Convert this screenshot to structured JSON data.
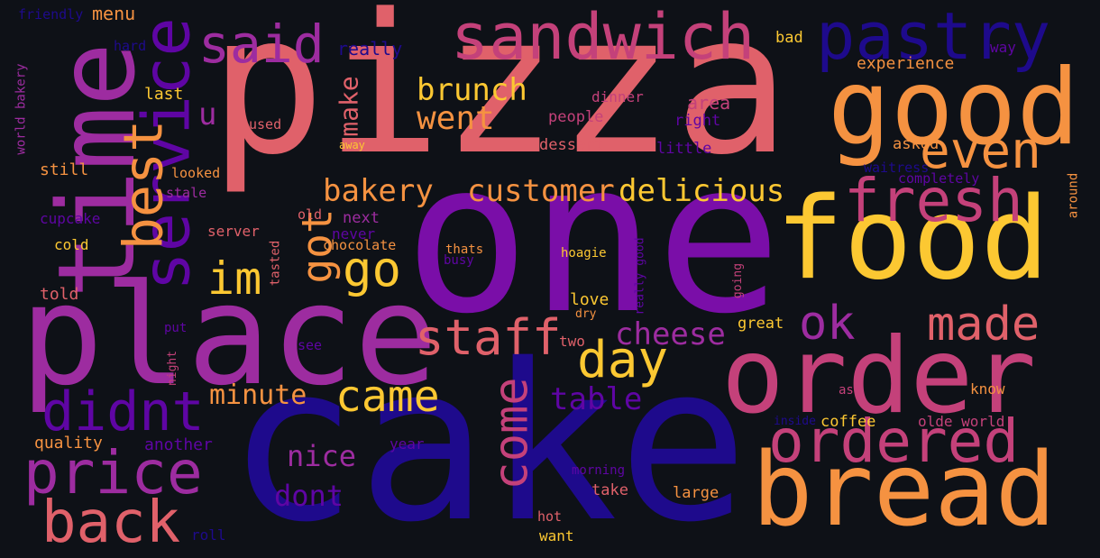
{
  "colors": {
    "background": "#0e1117",
    "coral": "#e0616a",
    "orange": "#f59241",
    "yellow": "#fcc832",
    "pink": "#c4417a",
    "magenta": "#9d2ca0",
    "purple": "#7a0ea8",
    "violet": "#5f05a4",
    "navy": "#1e0a8c"
  },
  "words": [
    {
      "text": "pizza",
      "color": "coral"
    },
    {
      "text": "one",
      "color": "purple"
    },
    {
      "text": "cake",
      "color": "navy"
    },
    {
      "text": "place",
      "color": "magenta"
    },
    {
      "text": "food",
      "color": "yellow"
    },
    {
      "text": "good",
      "color": "orange"
    },
    {
      "text": "order",
      "color": "pink"
    },
    {
      "text": "bread",
      "color": "orange"
    },
    {
      "text": "time",
      "color": "magenta"
    },
    {
      "text": "sandwich",
      "color": "pink"
    },
    {
      "text": "pastry",
      "color": "navy"
    },
    {
      "text": "service",
      "color": "violet"
    },
    {
      "text": "said",
      "color": "magenta"
    },
    {
      "text": "best",
      "color": "orange"
    },
    {
      "text": "fresh",
      "color": "pink"
    },
    {
      "text": "even",
      "color": "orange"
    },
    {
      "text": "ordered",
      "color": "pink"
    },
    {
      "text": "price",
      "color": "magenta"
    },
    {
      "text": "back",
      "color": "coral"
    },
    {
      "text": "didnt",
      "color": "violet"
    },
    {
      "text": "made",
      "color": "coral"
    },
    {
      "text": "day",
      "color": "yellow"
    },
    {
      "text": "staff",
      "color": "coral"
    },
    {
      "text": "came",
      "color": "yellow"
    },
    {
      "text": "come",
      "color": "pink"
    },
    {
      "text": "got",
      "color": "orange"
    },
    {
      "text": "go",
      "color": "yellow"
    },
    {
      "text": "im",
      "color": "yellow"
    },
    {
      "text": "ok",
      "color": "magenta"
    },
    {
      "text": "went",
      "color": "orange"
    },
    {
      "text": "brunch",
      "color": "yellow"
    },
    {
      "text": "bakery",
      "color": "orange"
    },
    {
      "text": "customer",
      "color": "orange"
    },
    {
      "text": "delicious",
      "color": "yellow"
    },
    {
      "text": "cheese",
      "color": "magenta"
    },
    {
      "text": "table",
      "color": "violet"
    },
    {
      "text": "minute",
      "color": "orange"
    },
    {
      "text": "nice",
      "color": "magenta"
    },
    {
      "text": "dont",
      "color": "violet"
    },
    {
      "text": "make",
      "color": "coral"
    },
    {
      "text": "u",
      "color": "magenta"
    },
    {
      "text": "really",
      "color": "navy"
    },
    {
      "text": "menu",
      "color": "orange"
    },
    {
      "text": "friendly",
      "color": "navy"
    },
    {
      "text": "hard",
      "color": "navy"
    },
    {
      "text": "world bakery",
      "color": "magenta"
    },
    {
      "text": "last",
      "color": "yellow"
    },
    {
      "text": "used",
      "color": "coral"
    },
    {
      "text": "still",
      "color": "orange"
    },
    {
      "text": "looked",
      "color": "orange"
    },
    {
      "text": "stale",
      "color": "magenta"
    },
    {
      "text": "cupcake",
      "color": "violet"
    },
    {
      "text": "cold",
      "color": "yellow"
    },
    {
      "text": "told",
      "color": "coral"
    },
    {
      "text": "quality",
      "color": "orange"
    },
    {
      "text": "another",
      "color": "violet"
    },
    {
      "text": "roll",
      "color": "navy"
    },
    {
      "text": "put",
      "color": "violet"
    },
    {
      "text": "night",
      "color": "pink"
    },
    {
      "text": "see",
      "color": "violet"
    },
    {
      "text": "server",
      "color": "coral"
    },
    {
      "text": "tasted",
      "color": "coral"
    },
    {
      "text": "old",
      "color": "coral"
    },
    {
      "text": "never",
      "color": "violet"
    },
    {
      "text": "next",
      "color": "magenta"
    },
    {
      "text": "chocolate",
      "color": "orange"
    },
    {
      "text": "thats",
      "color": "orange"
    },
    {
      "text": "busy",
      "color": "violet"
    },
    {
      "text": "hoagie",
      "color": "yellow"
    },
    {
      "text": "away",
      "color": "yellow"
    },
    {
      "text": "bad",
      "color": "yellow"
    },
    {
      "text": "way",
      "color": "violet"
    },
    {
      "text": "experience",
      "color": "orange"
    },
    {
      "text": "dinner",
      "color": "pink"
    },
    {
      "text": "area",
      "color": "pink"
    },
    {
      "text": "people",
      "color": "pink"
    },
    {
      "text": "right",
      "color": "violet"
    },
    {
      "text": "dessert",
      "color": "coral"
    },
    {
      "text": "little",
      "color": "violet"
    },
    {
      "text": "asked",
      "color": "orange"
    },
    {
      "text": "waitress",
      "color": "navy"
    },
    {
      "text": "completely",
      "color": "violet"
    },
    {
      "text": "around",
      "color": "orange"
    },
    {
      "text": "really good",
      "color": "violet"
    },
    {
      "text": "going",
      "color": "pink"
    },
    {
      "text": "love",
      "color": "yellow"
    },
    {
      "text": "dry",
      "color": "orange"
    },
    {
      "text": "two",
      "color": "coral"
    },
    {
      "text": "great",
      "color": "yellow"
    },
    {
      "text": "ask",
      "color": "pink"
    },
    {
      "text": "know",
      "color": "orange"
    },
    {
      "text": "inside",
      "color": "navy"
    },
    {
      "text": "coffee",
      "color": "yellow"
    },
    {
      "text": "olde world",
      "color": "pink"
    },
    {
      "text": "year",
      "color": "violet"
    },
    {
      "text": "morning",
      "color": "violet"
    },
    {
      "text": "take",
      "color": "coral"
    },
    {
      "text": "large",
      "color": "orange"
    },
    {
      "text": "hot",
      "color": "coral"
    },
    {
      "text": "want",
      "color": "yellow"
    }
  ]
}
